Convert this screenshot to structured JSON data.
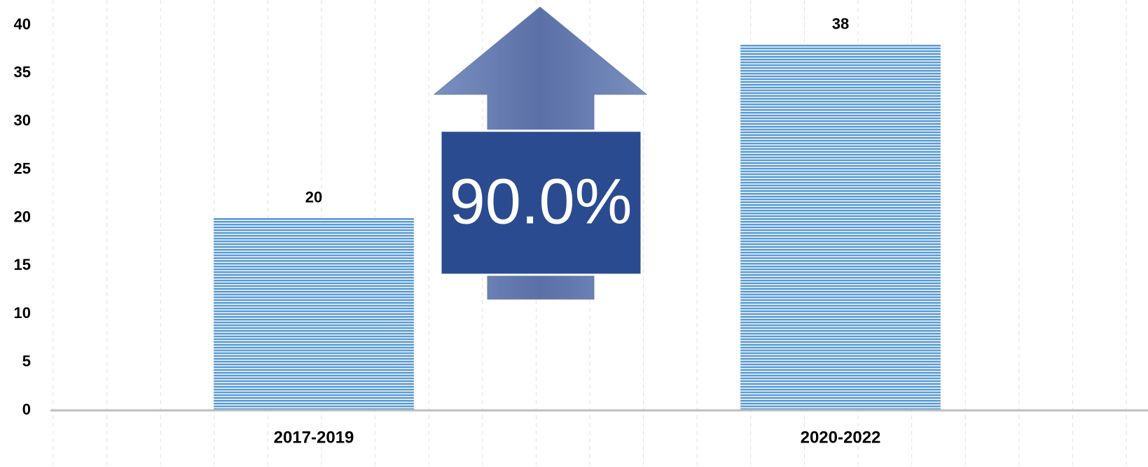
{
  "chart_data": {
    "type": "bar",
    "categories": [
      "2017-2019",
      "2020-2022"
    ],
    "values": [
      20,
      38
    ],
    "color": "#5b9bd5",
    "ylim": [
      0,
      40
    ],
    "yticks": [
      0,
      5,
      10,
      15,
      20,
      25,
      30,
      35,
      40
    ],
    "grid": false,
    "annotation": "90.0%"
  }
}
